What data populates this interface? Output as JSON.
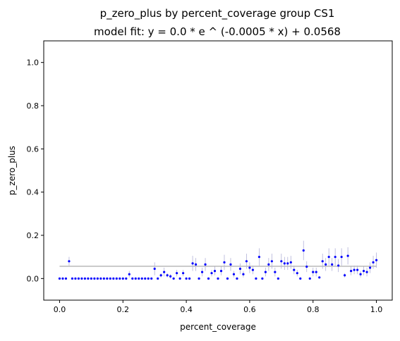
{
  "chart_data": {
    "type": "scatter",
    "title": "p_zero_plus by percent_coverage group CS1",
    "subtitle": "model fit: y = 0.0 * e ^ (-0.0005 * x) + 0.0568",
    "xlabel": "percent_coverage",
    "ylabel": "p_zero_plus",
    "xlim": [
      -0.05,
      1.05
    ],
    "ylim": [
      -0.1,
      1.1
    ],
    "xticks": [
      "0.0",
      "0.2",
      "0.4",
      "0.6",
      "0.8",
      "1.0"
    ],
    "yticks": [
      "0.0",
      "0.2",
      "0.4",
      "0.6",
      "0.8",
      "1.0"
    ],
    "grid": false,
    "fit_line": {
      "x": [
        0.0,
        1.0
      ],
      "y": [
        0.0568,
        0.0568
      ],
      "color": "#a0a0a0"
    },
    "point_color": "#0000ff",
    "errorbar_color": "#b0b0d8",
    "series": [
      {
        "name": "CS1",
        "x": [
          0.0,
          0.01,
          0.02,
          0.03,
          0.04,
          0.05,
          0.06,
          0.07,
          0.08,
          0.09,
          0.1,
          0.11,
          0.12,
          0.13,
          0.14,
          0.15,
          0.16,
          0.17,
          0.18,
          0.19,
          0.2,
          0.21,
          0.22,
          0.23,
          0.24,
          0.25,
          0.26,
          0.27,
          0.28,
          0.29,
          0.3,
          0.31,
          0.32,
          0.33,
          0.34,
          0.35,
          0.36,
          0.37,
          0.38,
          0.39,
          0.4,
          0.41,
          0.42,
          0.43,
          0.44,
          0.45,
          0.46,
          0.47,
          0.48,
          0.49,
          0.5,
          0.51,
          0.52,
          0.53,
          0.54,
          0.55,
          0.56,
          0.57,
          0.58,
          0.59,
          0.6,
          0.61,
          0.62,
          0.63,
          0.64,
          0.65,
          0.66,
          0.67,
          0.68,
          0.69,
          0.7,
          0.71,
          0.72,
          0.73,
          0.74,
          0.75,
          0.76,
          0.77,
          0.78,
          0.79,
          0.8,
          0.81,
          0.82,
          0.83,
          0.84,
          0.85,
          0.86,
          0.87,
          0.88,
          0.89,
          0.9,
          0.91,
          0.92,
          0.93,
          0.94,
          0.95,
          0.96,
          0.97,
          0.98,
          0.99,
          1.0
        ],
        "y": [
          0.0,
          0.0,
          0.0,
          0.08,
          0.0,
          0.0,
          0.0,
          0.0,
          0.0,
          0.0,
          0.0,
          0.0,
          0.0,
          0.0,
          0.0,
          0.0,
          0.0,
          0.0,
          0.0,
          0.0,
          0.0,
          0.0,
          0.02,
          0.0,
          0.0,
          0.0,
          0.0,
          0.0,
          0.0,
          0.0,
          0.045,
          0.0,
          0.015,
          0.03,
          0.015,
          0.01,
          0.0,
          0.025,
          0.0,
          0.025,
          0.0,
          0.0,
          0.07,
          0.065,
          0.0,
          0.03,
          0.065,
          0.0,
          0.025,
          0.035,
          0.0,
          0.035,
          0.075,
          0.0,
          0.065,
          0.02,
          0.0,
          0.045,
          0.02,
          0.08,
          0.05,
          0.04,
          0.0,
          0.1,
          0.0,
          0.03,
          0.065,
          0.08,
          0.03,
          0.0,
          0.08,
          0.07,
          0.07,
          0.075,
          0.04,
          0.025,
          0.0,
          0.13,
          0.055,
          0.0,
          0.03,
          0.03,
          0.005,
          0.08,
          0.065,
          0.1,
          0.065,
          0.1,
          0.06,
          0.1,
          0.015,
          0.105,
          0.035,
          0.04,
          0.04,
          0.02,
          0.035,
          0.03,
          0.05,
          0.075,
          0.085
        ],
        "err": [
          0.0,
          0.0,
          0.0,
          0.02,
          0.0,
          0.0,
          0.0,
          0.0,
          0.0,
          0.0,
          0.0,
          0.0,
          0.0,
          0.0,
          0.0,
          0.0,
          0.0,
          0.0,
          0.0,
          0.0,
          0.0,
          0.0,
          0.015,
          0.0,
          0.0,
          0.0,
          0.0,
          0.0,
          0.0,
          0.0,
          0.03,
          0.0,
          0.01,
          0.02,
          0.01,
          0.01,
          0.0,
          0.015,
          0.0,
          0.015,
          0.0,
          0.0,
          0.035,
          0.03,
          0.0,
          0.02,
          0.03,
          0.0,
          0.015,
          0.02,
          0.0,
          0.02,
          0.035,
          0.0,
          0.03,
          0.015,
          0.0,
          0.025,
          0.015,
          0.035,
          0.025,
          0.02,
          0.0,
          0.04,
          0.0,
          0.02,
          0.03,
          0.035,
          0.02,
          0.0,
          0.035,
          0.03,
          0.03,
          0.03,
          0.02,
          0.015,
          0.0,
          0.045,
          0.025,
          0.0,
          0.02,
          0.02,
          0.005,
          0.035,
          0.03,
          0.04,
          0.03,
          0.04,
          0.03,
          0.04,
          0.01,
          0.04,
          0.02,
          0.02,
          0.02,
          0.015,
          0.02,
          0.02,
          0.025,
          0.03,
          0.035
        ]
      }
    ]
  }
}
